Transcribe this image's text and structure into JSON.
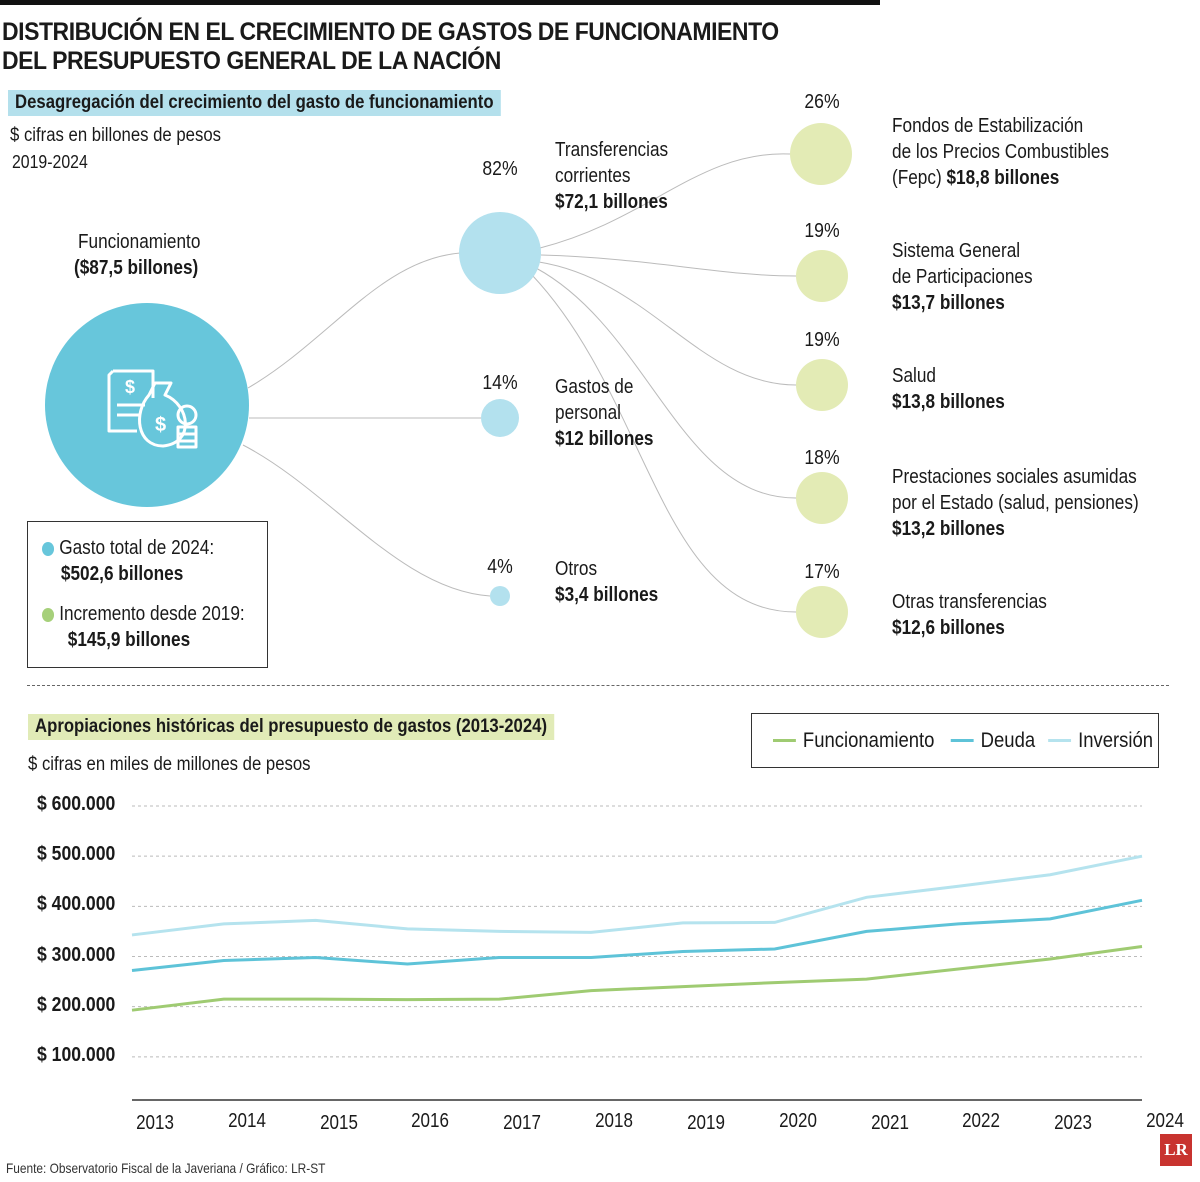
{
  "title_line1": "DISTRIBUCIÓN EN EL CRECIMIENTO DE GASTOS DE FUNCIONAMIENTO",
  "title_line2": "DEL PRESUPUESTO GENERAL DE LA NACIÓN",
  "colors": {
    "main": "#67c6db",
    "light_blue": "#b3e1ee",
    "light_green": "#e3ebb5",
    "header_blue": "#b4e0ec",
    "header_green": "#e1ebb7",
    "funcionamiento": "#9fcb72",
    "deuda": "#5ec3d8",
    "inversion": "#b5e3ee"
  },
  "top": {
    "heading": "Desagregación del crecimiento del gasto de funcionamiento",
    "units": "$ cifras en billones de pesos",
    "period": "2019-2024",
    "root": {
      "label": "Funcionamiento",
      "value": "($87,5 billones)",
      "icon": "money-bag-document-icon"
    },
    "level1": [
      {
        "pct": "82%",
        "label1": "Transferencias",
        "label2": "corrientes",
        "value": "$72,1 billones"
      },
      {
        "pct": "14%",
        "label1": "Gastos de",
        "label2": "personal",
        "value": "$12 billones"
      },
      {
        "pct": "4%",
        "label1": "Otros",
        "label2": "",
        "value": "$3,4 billones"
      }
    ],
    "level2": [
      {
        "pct": "26%",
        "label1": "Fondos de Estabilización",
        "label2": "de los Precios Combustibles",
        "label3": "(Fepc) ",
        "value": "$18,8 billones"
      },
      {
        "pct": "19%",
        "label1": "Sistema General",
        "label2": "de Participaciones",
        "label3": "",
        "value": "$13,7 billones"
      },
      {
        "pct": "19%",
        "label1": "Salud",
        "label2": "",
        "label3": "",
        "value": "$13,8 billones"
      },
      {
        "pct": "18%",
        "label1": "Prestaciones sociales asumidas",
        "label2": "por el Estado (salud, pensiones)",
        "label3": "",
        "value": "$13,2 billones"
      },
      {
        "pct": "17%",
        "label1": "Otras transferencias",
        "label2": "",
        "label3": "",
        "value": "$12,6 billones"
      }
    ],
    "legend": [
      {
        "label": "Gasto total de 2024:",
        "value": "$502,6 billones"
      },
      {
        "label": "Incremento desde 2019:",
        "value": "$145,9 billones"
      }
    ]
  },
  "chart_data": {
    "type": "line",
    "title": "Apropiaciones históricas del presupuesto de gastos (2013-2024)",
    "ylabel": "$ cifras en miles de millones de pesos",
    "ylim": [
      0,
      600000
    ],
    "yticks": [
      "$ 100.000",
      "$ 200.000",
      "$ 300.000",
      "$ 400.000",
      "$ 500.000",
      "$ 600.000"
    ],
    "ytick_values": [
      100000,
      200000,
      300000,
      400000,
      500000,
      600000
    ],
    "grid": true,
    "legend_position": "top-right",
    "x": [
      "2013",
      "2014",
      "2015",
      "2016",
      "2017",
      "2018",
      "2019",
      "2020",
      "2021",
      "2022",
      "2023",
      "2024"
    ],
    "series": [
      {
        "name": "Funcionamiento",
        "color": "#9fcb72",
        "values": [
          193000,
          215000,
          215000,
          214000,
          215000,
          232000,
          240000,
          248000,
          255000,
          275000,
          295000,
          320000
        ]
      },
      {
        "name": "Deuda",
        "color": "#5ec3d8",
        "values": [
          272000,
          292000,
          298000,
          285000,
          298000,
          298000,
          310000,
          315000,
          350000,
          365000,
          375000,
          412000
        ]
      },
      {
        "name": "Inversión",
        "color": "#b5e3ee",
        "values": [
          343000,
          365000,
          372000,
          355000,
          350000,
          348000,
          367000,
          368000,
          418000,
          440000,
          463000,
          500000
        ]
      }
    ]
  },
  "source": "Fuente: Observatorio Fiscal de la Javeriana / Gráfico: LR-ST",
  "logo": "LR"
}
